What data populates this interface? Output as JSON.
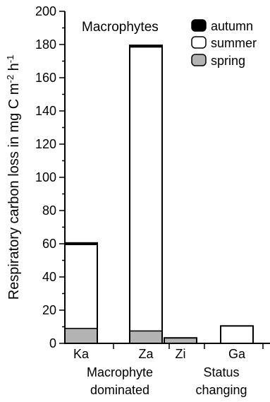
{
  "chart_data": {
    "type": "bar",
    "stacked": true,
    "title": "Macrophytes",
    "ylabel_main": "Respiratory carbon loss in mg C m",
    "ylabel_exp1": "-2",
    "ylabel_mid": " h",
    "ylabel_exp2": "-1",
    "xlabel": "",
    "ylim": [
      0,
      200
    ],
    "yticks": [
      0,
      20,
      40,
      60,
      80,
      100,
      120,
      140,
      160,
      180,
      200
    ],
    "ytick_labels": [
      "0",
      "20",
      "40",
      "60",
      "80",
      "100",
      "120",
      "140",
      "160",
      "180",
      "200"
    ],
    "categories": [
      "Ka",
      "Za",
      "Zi",
      "Ga"
    ],
    "series": [
      {
        "name": "spring",
        "color": "#b3b3b3",
        "values": [
          9,
          7.5,
          3.3,
          0
        ]
      },
      {
        "name": "summer",
        "color": "#ffffff",
        "values": [
          50.5,
          171,
          0,
          10.5
        ]
      },
      {
        "name": "autumn",
        "color": "#000000",
        "values": [
          1,
          1,
          0,
          0
        ]
      }
    ],
    "legend": {
      "placement": "top-right",
      "order": [
        "autumn",
        "summer",
        "spring"
      ]
    },
    "groups": [
      {
        "lines": [
          "Macrophyte",
          "dominated"
        ],
        "categories": [
          "Ka",
          "Za"
        ]
      },
      {
        "lines": [
          "Status",
          "changing"
        ],
        "categories": [
          "Zi",
          "Ga"
        ]
      }
    ],
    "grid": false
  }
}
